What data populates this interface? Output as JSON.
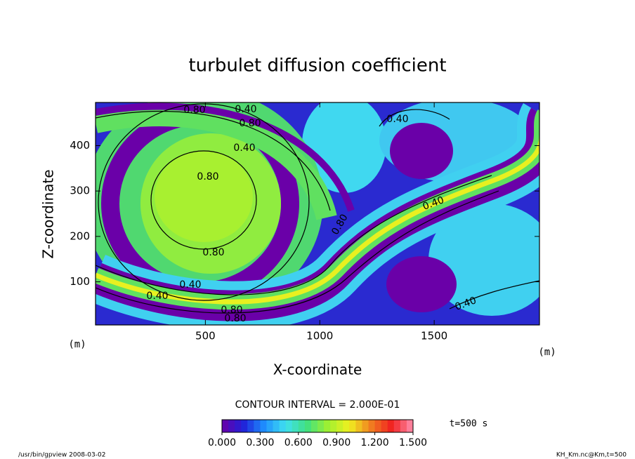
{
  "chart_data": {
    "type": "contour",
    "title": "turbulet diffusion coefficient",
    "xlabel": "X-coordinate",
    "ylabel": "Z-coordinate",
    "xunit": "(m)",
    "yunit": "(m)",
    "xlim": [
      20,
      1960
    ],
    "ylim": [
      5,
      495
    ],
    "xticks": [
      500,
      1000,
      1500
    ],
    "yticks": [
      100,
      200,
      300,
      400
    ],
    "contour_labels": [
      "0.80",
      "0.40",
      "0.80",
      "0.40",
      "0.80",
      "0.40",
      "0.80",
      "0.40",
      "0.80",
      "0.40",
      "0.40",
      "0.80",
      "0.80",
      "0.40"
    ],
    "contour_interval_text": "CONTOUR INTERVAL = 2.000E-01",
    "time_text": "t=500 s",
    "colorbar": {
      "colors": [
        "#6a00a8",
        "#2020d8",
        "#1e90ff",
        "#40e0f0",
        "#40e080",
        "#a0f030",
        "#f0f020",
        "#f08020",
        "#f02020",
        "#ff90b0"
      ],
      "ticks": [
        {
          "value": 0,
          "label": "0.000"
        },
        {
          "value": 0.3,
          "label": "0.300"
        },
        {
          "value": 0.6,
          "label": "0.600"
        },
        {
          "value": 0.9,
          "label": "0.900"
        },
        {
          "value": 1.2,
          "label": "1.200"
        },
        {
          "value": 1.5,
          "label": "1.500"
        }
      ],
      "lim": [
        0,
        1.5
      ]
    },
    "footer_left": "/usr/bin/gpview  2008-03-02",
    "footer_right": "KH_Km.nc@Km,t=500"
  }
}
